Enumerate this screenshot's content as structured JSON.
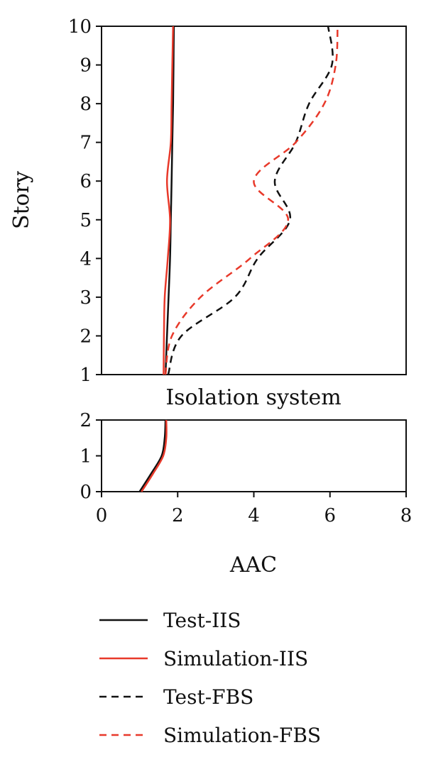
{
  "chart_data": {
    "type": "line",
    "xlabel": "AAC",
    "xlim": [
      0,
      8
    ],
    "xticks": [
      "0",
      "2",
      "4",
      "6",
      "8"
    ],
    "colors": {
      "test": "#111111",
      "simulation": "#e8392a"
    },
    "panels": [
      {
        "name": "upper",
        "ylabel": "Story",
        "ylim": [
          1,
          10
        ],
        "yticks": [
          "1",
          "2",
          "3",
          "4",
          "5",
          "6",
          "7",
          "8",
          "9",
          "10"
        ],
        "caption": "Isolation system",
        "series": [
          {
            "name": "Test-IIS",
            "color": "#111111",
            "dash": false,
            "x": [
              1.68,
              1.72,
              1.76,
              1.8,
              1.82,
              1.84,
              1.86,
              1.88,
              1.89,
              1.9
            ],
            "y": [
              1,
              2,
              3,
              4,
              5,
              6,
              7,
              8,
              9,
              10
            ]
          },
          {
            "name": "Simulation-IIS",
            "color": "#e8392a",
            "dash": false,
            "x": [
              1.63,
              1.64,
              1.66,
              1.74,
              1.8,
              1.72,
              1.82,
              1.84,
              1.86,
              1.88
            ],
            "y": [
              1,
              2,
              3,
              4,
              5,
              6,
              7,
              8,
              9,
              10
            ]
          },
          {
            "name": "Test-FBS",
            "color": "#111111",
            "dash": true,
            "x": [
              1.75,
              2.1,
              3.5,
              4.1,
              4.95,
              4.55,
              5.1,
              5.45,
              6.05,
              5.95
            ],
            "y": [
              1,
              2,
              3,
              4,
              5,
              6,
              7,
              8,
              9,
              10
            ]
          },
          {
            "name": "Simulation-FBS",
            "color": "#e8392a",
            "dash": true,
            "x": [
              1.68,
              1.85,
              2.6,
              3.9,
              4.9,
              4.0,
              5.1,
              5.85,
              6.15,
              6.2
            ],
            "y": [
              1,
              2,
              3,
              4,
              5,
              6,
              7,
              8,
              9,
              10
            ]
          }
        ]
      },
      {
        "name": "lower",
        "ylabel": "",
        "ylim": [
          0,
          2
        ],
        "yticks": [
          "0",
          "1",
          "2"
        ],
        "series": [
          {
            "name": "Test-IIS",
            "color": "#111111",
            "dash": false,
            "x": [
              1.0,
              1.3,
              1.58,
              1.66,
              1.68
            ],
            "y": [
              0,
              0.5,
              1.0,
              1.5,
              2.0
            ]
          },
          {
            "name": "Simulation-IIS",
            "color": "#e8392a",
            "dash": false,
            "x": [
              1.05,
              1.35,
              1.62,
              1.7,
              1.7
            ],
            "y": [
              0,
              0.5,
              1.0,
              1.5,
              2.0
            ]
          }
        ]
      }
    ],
    "legend": {
      "placement": "bottom",
      "entries": [
        {
          "label": "Test-IIS",
          "color": "#111111",
          "dash": false
        },
        {
          "label": "Simulation-IIS",
          "color": "#e8392a",
          "dash": false
        },
        {
          "label": "Test-FBS",
          "color": "#111111",
          "dash": true
        },
        {
          "label": "Simulation-FBS",
          "color": "#e8392a",
          "dash": true
        }
      ]
    }
  }
}
